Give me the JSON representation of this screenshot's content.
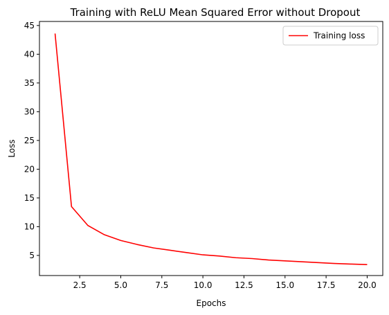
{
  "chart_data": {
    "type": "line",
    "title": "Training with ReLU Mean Squared Error without Dropout",
    "xlabel": "Epochs",
    "ylabel": "Loss",
    "xlim": [
      0.05,
      20.95
    ],
    "ylim": [
      1.5,
      45.7
    ],
    "xticks": [
      2.5,
      5.0,
      7.5,
      10.0,
      12.5,
      15.0,
      17.5,
      20.0
    ],
    "xtick_labels": [
      "2.5",
      "5.0",
      "7.5",
      "10.0",
      "12.5",
      "15.0",
      "17.5",
      "20.0"
    ],
    "yticks": [
      5,
      10,
      15,
      20,
      25,
      30,
      35,
      40,
      45
    ],
    "ytick_labels": [
      "5",
      "10",
      "15",
      "20",
      "25",
      "30",
      "35",
      "40",
      "45"
    ],
    "grid": false,
    "legend_position": "top-right",
    "series": [
      {
        "name": "Training loss",
        "color": "#ff0000",
        "x": [
          1,
          2,
          3,
          4,
          5,
          6,
          7,
          8,
          9,
          10,
          11,
          12,
          13,
          14,
          15,
          16,
          17,
          18,
          19,
          20
        ],
        "y": [
          43.6,
          13.5,
          10.2,
          8.6,
          7.6,
          6.9,
          6.3,
          5.9,
          5.5,
          5.1,
          4.9,
          4.6,
          4.45,
          4.2,
          4.05,
          3.9,
          3.75,
          3.6,
          3.5,
          3.4
        ]
      }
    ]
  }
}
